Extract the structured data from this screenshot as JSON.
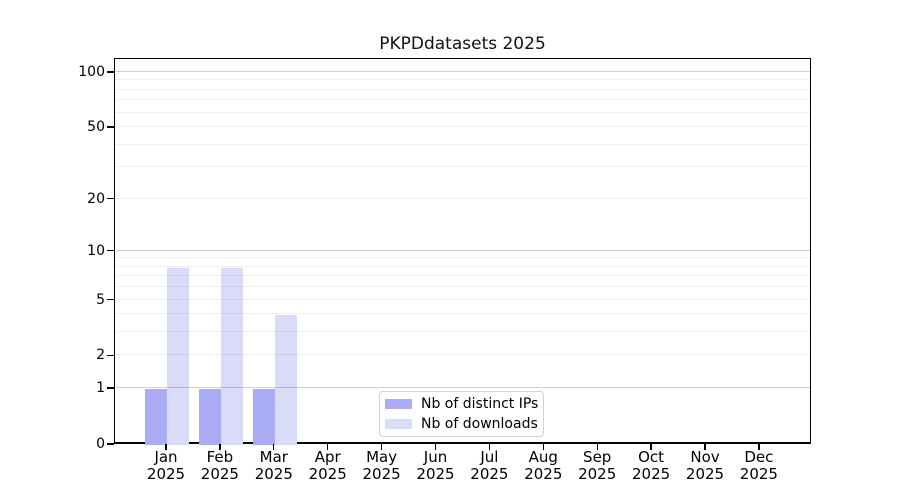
{
  "chart_data": {
    "type": "bar",
    "title": "PKPDdatasets 2025",
    "categories": [
      "Jan",
      "Feb",
      "Mar",
      "Apr",
      "May",
      "Jun",
      "Jul",
      "Aug",
      "Sep",
      "Oct",
      "Nov",
      "Dec"
    ],
    "category_year": "2025",
    "series": [
      {
        "name": "Nb of distinct IPs",
        "color": "#a9abf5",
        "values": [
          1,
          1,
          1,
          0,
          0,
          0,
          0,
          0,
          0,
          0,
          0,
          0
        ]
      },
      {
        "name": "Nb of downloads",
        "color": "#d9dbf8",
        "values": [
          8,
          8,
          4,
          0,
          0,
          0,
          0,
          0,
          0,
          0,
          0,
          0
        ]
      }
    ],
    "yscale": "log1p",
    "ylim": [
      0,
      119
    ],
    "yticks": [
      0,
      1,
      2,
      5,
      10,
      20,
      50,
      100
    ],
    "major_gridlines": [
      1,
      10,
      100
    ],
    "minor_gridlines": [
      2,
      3,
      4,
      5,
      6,
      7,
      8,
      9,
      20,
      30,
      40,
      50,
      60,
      70,
      80,
      90
    ],
    "grid": true,
    "legend_position": "bottom-center"
  },
  "colors": {
    "axis": "#000000",
    "grid_minor": "#ededed",
    "grid_major": "#d2d2d2",
    "legend_border": "#d2d2d2",
    "background": "#ffffff"
  }
}
